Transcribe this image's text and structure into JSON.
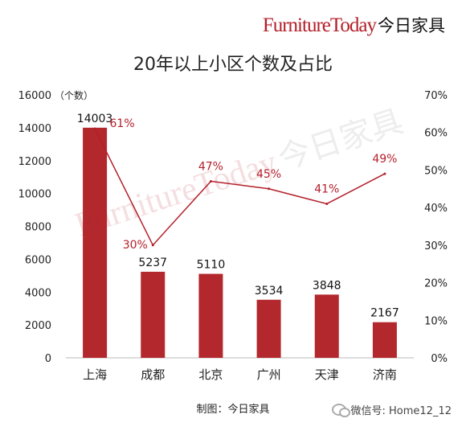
{
  "brand": {
    "latin": "FurnitureToday",
    "cn": "今日家具"
  },
  "watermark": {
    "latin": "FurnitureToday",
    "cn": "今日家具"
  },
  "source_label": "制图：今日家具",
  "wechat_label": "微信号: Home12_12",
  "colors": {
    "bar": "#b3282d",
    "line": "#b3202a",
    "brand": "#b3202a"
  },
  "chart_data": {
    "type": "bar",
    "title": "20年以上小区个数及占比",
    "left_axis_unit": "（个数）",
    "categories": [
      "上海",
      "成都",
      "北京",
      "广州",
      "天津",
      "济南"
    ],
    "series": [
      {
        "type": "bar",
        "axis": "left",
        "values": [
          14003,
          5237,
          5110,
          3534,
          3848,
          2167
        ],
        "labels": [
          "14003",
          "5237",
          "5110",
          "3534",
          "3848",
          "2167"
        ]
      },
      {
        "type": "line",
        "axis": "right",
        "values": [
          61,
          30,
          47,
          45,
          41,
          49
        ],
        "labels": [
          "61%",
          "30%",
          "47%",
          "45%",
          "41%",
          "49%"
        ]
      }
    ],
    "left_axis": {
      "min": 0,
      "max": 16000,
      "ticks": [
        0,
        2000,
        4000,
        6000,
        8000,
        10000,
        12000,
        14000,
        16000
      ],
      "tick_labels": [
        "0",
        "2000",
        "4000",
        "6000",
        "8000",
        "10000",
        "12000",
        "14000",
        "16000"
      ]
    },
    "right_axis": {
      "min": 0,
      "max": 70,
      "ticks": [
        0,
        10,
        20,
        30,
        40,
        50,
        60,
        70
      ],
      "tick_labels": [
        "0%",
        "10%",
        "20%",
        "30%",
        "40%",
        "50%",
        "60%",
        "70%"
      ]
    },
    "grid": false,
    "legend": "none"
  }
}
